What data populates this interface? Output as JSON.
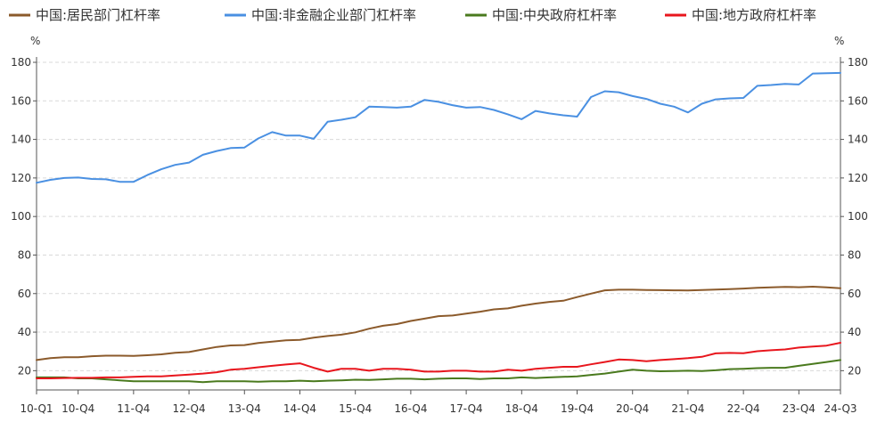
{
  "chart_data": {
    "type": "line",
    "title": "",
    "xlabel": "",
    "ylabel": "%",
    "ylabel_right": "%",
    "ylim": [
      10,
      180
    ],
    "y_ticks": [
      20,
      40,
      60,
      80,
      100,
      120,
      140,
      160,
      180
    ],
    "grid": true,
    "legend_position": "top",
    "categories": [
      "10-Q1",
      "10-Q2",
      "10-Q3",
      "10-Q4",
      "11-Q1",
      "11-Q2",
      "11-Q3",
      "11-Q4",
      "12-Q1",
      "12-Q2",
      "12-Q3",
      "12-Q4",
      "13-Q1",
      "13-Q2",
      "13-Q3",
      "13-Q4",
      "14-Q1",
      "14-Q2",
      "14-Q3",
      "14-Q4",
      "15-Q1",
      "15-Q2",
      "15-Q3",
      "15-Q4",
      "16-Q1",
      "16-Q2",
      "16-Q3",
      "16-Q4",
      "17-Q1",
      "17-Q2",
      "17-Q3",
      "17-Q4",
      "18-Q1",
      "18-Q2",
      "18-Q3",
      "18-Q4",
      "19-Q1",
      "19-Q2",
      "19-Q3",
      "19-Q4",
      "20-Q1",
      "20-Q2",
      "20-Q3",
      "20-Q4",
      "21-Q1",
      "21-Q2",
      "21-Q3",
      "21-Q4",
      "22-Q1",
      "22-Q2",
      "22-Q3",
      "22-Q4",
      "23-Q1",
      "23-Q2",
      "23-Q3",
      "23-Q4",
      "24-Q1",
      "24-Q2",
      "24-Q3"
    ],
    "x_tick_labels": [
      "10-Q1",
      "10-Q4",
      "11-Q4",
      "12-Q4",
      "13-Q4",
      "14-Q4",
      "15-Q4",
      "16-Q4",
      "17-Q4",
      "18-Q4",
      "19-Q4",
      "20-Q4",
      "21-Q4",
      "22-Q4",
      "23-Q4",
      "24-Q3"
    ],
    "series": [
      {
        "name": "中国:居民部门杠杆率",
        "color": "#8B5A2B",
        "values": [
          25.5,
          26.5,
          27.0,
          27.0,
          27.5,
          27.8,
          27.8,
          27.7,
          28.0,
          28.5,
          29.3,
          29.7,
          31.0,
          32.3,
          33.1,
          33.3,
          34.4,
          35.1,
          35.8,
          36.0,
          37.1,
          38.0,
          38.7,
          39.9,
          41.8,
          43.3,
          44.2,
          45.8,
          47.0,
          48.3,
          48.6,
          49.6,
          50.6,
          51.8,
          52.3,
          53.7,
          54.8,
          55.7,
          56.3,
          58.2,
          60.0,
          61.7,
          62.0,
          62.0,
          61.9,
          61.8,
          61.7,
          61.6,
          61.9,
          62.1,
          62.3,
          62.6,
          63.0,
          63.2,
          63.5,
          63.3,
          63.6,
          63.2,
          62.8
        ]
      },
      {
        "name": "中国:非金融企业部门杠杆率",
        "color": "#4A90E2",
        "values": [
          117.5,
          119.0,
          120.0,
          120.2,
          119.5,
          119.3,
          118.0,
          118.0,
          121.5,
          124.5,
          126.8,
          128.0,
          132.0,
          134.0,
          135.5,
          135.8,
          140.5,
          143.8,
          142.0,
          142.0,
          140.3,
          149.2,
          150.2,
          151.5,
          157.0,
          156.8,
          156.5,
          157.0,
          160.5,
          159.5,
          157.8,
          156.5,
          156.8,
          155.3,
          153.0,
          150.5,
          154.8,
          153.5,
          152.5,
          151.8,
          162.0,
          165.0,
          164.5,
          162.5,
          161.0,
          158.5,
          157.0,
          154.0,
          158.5,
          160.8,
          161.3,
          161.5,
          167.8,
          168.2,
          168.8,
          168.5,
          174.2,
          174.3,
          174.5
        ]
      },
      {
        "name": "中国:中央政府杠杆率",
        "color": "#4A7A1E",
        "values": [
          16.5,
          16.5,
          16.5,
          16.0,
          16.0,
          15.5,
          15.0,
          14.5,
          14.5,
          14.5,
          14.5,
          14.5,
          14.0,
          14.5,
          14.5,
          14.5,
          14.3,
          14.5,
          14.5,
          14.8,
          14.5,
          14.8,
          15.0,
          15.3,
          15.2,
          15.5,
          15.8,
          15.8,
          15.5,
          15.8,
          16.0,
          16.0,
          15.7,
          16.0,
          16.0,
          16.5,
          16.2,
          16.5,
          16.8,
          17.0,
          17.8,
          18.5,
          19.5,
          20.5,
          20.0,
          19.7,
          19.8,
          20.0,
          19.8,
          20.2,
          20.8,
          21.0,
          21.3,
          21.5,
          21.5,
          22.5,
          23.5,
          24.5,
          25.5
        ]
      },
      {
        "name": "中国:地方政府杠杆率",
        "color": "#E8161D",
        "values": [
          16.0,
          16.0,
          16.2,
          16.3,
          16.3,
          16.5,
          16.5,
          16.8,
          17.0,
          17.0,
          17.5,
          18.0,
          18.5,
          19.2,
          20.5,
          21.0,
          21.8,
          22.5,
          23.2,
          23.8,
          21.5,
          19.5,
          21.0,
          21.0,
          20.0,
          21.0,
          21.0,
          20.5,
          19.5,
          19.5,
          20.0,
          20.0,
          19.5,
          19.5,
          20.5,
          20.0,
          21.0,
          21.5,
          22.0,
          22.0,
          23.3,
          24.5,
          25.8,
          25.5,
          24.9,
          25.5,
          26.0,
          26.5,
          27.2,
          29.0,
          29.2,
          29.1,
          30.1,
          30.6,
          31.0,
          32.0,
          32.5,
          33.0,
          34.5
        ]
      }
    ]
  }
}
